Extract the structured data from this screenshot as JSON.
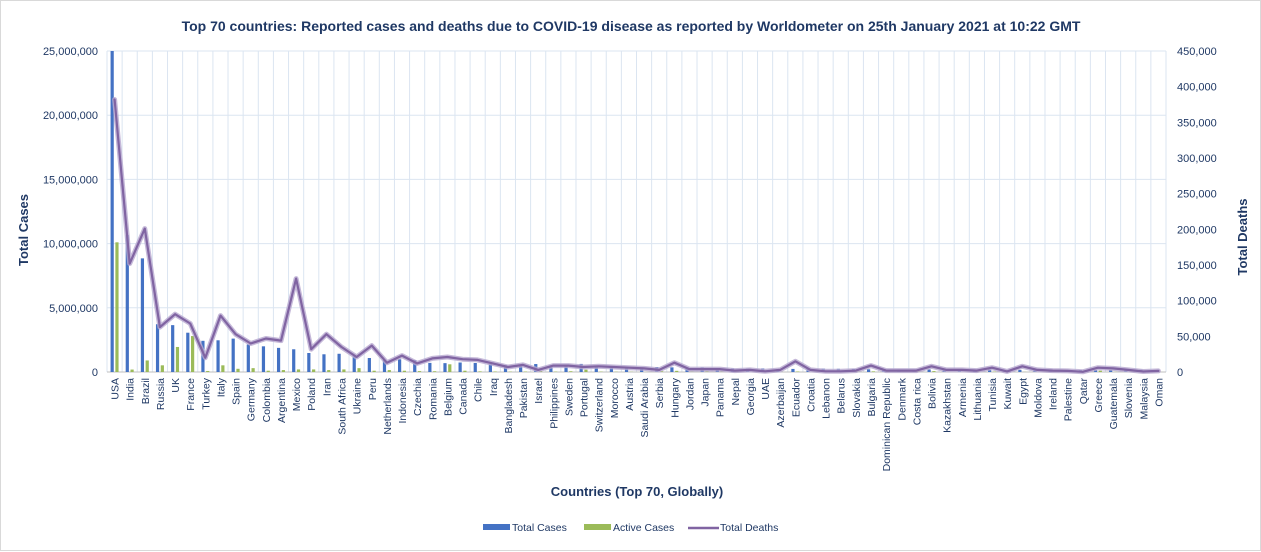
{
  "chart_data": {
    "type": "bar",
    "title": "Top 70 countries: Reported cases and deaths due to COVID-19 disease as reported by Worldometer on 25th January 2021 at 10:22 GMT",
    "xlabel": "Countries (Top 70, Globally)",
    "ylabel": "Total Cases",
    "y2label": "Total Deaths",
    "ylim": [
      0,
      25000000
    ],
    "y2lim": [
      0,
      450000
    ],
    "yticks": [
      "0",
      "5,000,000",
      "10,000,000",
      "15,000,000",
      "20,000,000",
      "25,000,000"
    ],
    "y2ticks": [
      "0",
      "50,000",
      "100,000",
      "150,000",
      "200,000",
      "250,000",
      "300,000",
      "350,000",
      "400,000",
      "450,000"
    ],
    "grid": true,
    "legend_position": "bottom",
    "categories": [
      "USA",
      "India",
      "Brazil",
      "Russia",
      "UK",
      "France",
      "Turkey",
      "Italy",
      "Spain",
      "Germany",
      "Colombia",
      "Argentina",
      "Mexico",
      "Poland",
      "Iran",
      "South Africa",
      "Ukraine",
      "Peru",
      "Netherlands",
      "Indonesia",
      "Czechia",
      "Romania",
      "Belgium",
      "Canada",
      "Chile",
      "Iraq",
      "Bangladesh",
      "Pakistan",
      "Israel",
      "Philippines",
      "Sweden",
      "Portugal",
      "Switzerland",
      "Morocco",
      "Austria",
      "Saudi Arabia",
      "Serbia",
      "Hungary",
      "Jordan",
      "Japan",
      "Panama",
      "Nepal",
      "Georgia",
      "UAE",
      "Azerbaijan",
      "Ecuador",
      "Croatia",
      "Lebanon",
      "Belarus",
      "Slovakia",
      "Bulgaria",
      "Dominican Republic",
      "Denmark",
      "Costa rica",
      "Bolivia",
      "Kazakhstan",
      "Armenia",
      "Lithuania",
      "Tunisia",
      "Kuwait",
      "Egypt",
      "Moldova",
      "Ireland",
      "Palestine",
      "Qatar",
      "Greece",
      "Guatemala",
      "Slovenia",
      "Malaysia",
      "Oman"
    ],
    "series": [
      {
        "name": "Total Cases",
        "color": "#4472c4",
        "axis": "left",
        "type": "bar",
        "values": [
          25600000,
          10670000,
          8850000,
          3720000,
          3650000,
          3060000,
          2430000,
          2470000,
          2600000,
          2140000,
          2000000,
          1880000,
          1770000,
          1480000,
          1380000,
          1420000,
          1220000,
          1090000,
          950000,
          990000,
          930000,
          710000,
          690000,
          740000,
          700000,
          610000,
          530000,
          540000,
          620000,
          510000,
          560000,
          630000,
          510000,
          470000,
          400000,
          368000,
          390000,
          360000,
          320000,
          360000,
          310000,
          270000,
          255000,
          280000,
          230000,
          240000,
          230000,
          270000,
          250000,
          240000,
          210000,
          210000,
          200000,
          180000,
          190000,
          200000,
          165000,
          180000,
          190000,
          160000,
          160000,
          155000,
          190000,
          155000,
          150000,
          150000,
          150000,
          160000,
          180000,
          135000
        ]
      },
      {
        "name": "Active Cases",
        "color": "#9bbb59",
        "axis": "left",
        "type": "bar",
        "values": [
          10100000,
          190000,
          900000,
          520000,
          1950000,
          2800000,
          80000,
          520000,
          250000,
          300000,
          100000,
          150000,
          200000,
          200000,
          150000,
          200000,
          300000,
          100000,
          150000,
          100000,
          70000,
          60000,
          600000,
          100000,
          50000,
          40000,
          30000,
          35000,
          70000,
          30000,
          60000,
          180000,
          30000,
          20000,
          15000,
          4000,
          60000,
          90000,
          15000,
          35000,
          40000,
          10000,
          10000,
          35000,
          5000,
          40000,
          10000,
          100000,
          5000,
          50000,
          50000,
          60000,
          15000,
          70000,
          70000,
          20000,
          5000,
          40000,
          30000,
          3000,
          10000,
          5000,
          30000,
          15000,
          10000,
          100000,
          10000,
          20000,
          30000,
          3000
        ]
      },
      {
        "name": "Total Deaths",
        "color": "#8064a2",
        "axis": "right",
        "type": "line",
        "values": [
          382000,
          152000,
          201000,
          63000,
          81000,
          68000,
          20000,
          79000,
          53000,
          40000,
          47000,
          44000,
          131000,
          32000,
          53000,
          35000,
          21000,
          37000,
          13000,
          23000,
          12000,
          19000,
          21000,
          18000,
          17000,
          12000,
          7000,
          10000,
          3000,
          9000,
          9000,
          7000,
          8000,
          7000,
          6000,
          5000,
          3000,
          13000,
          4000,
          4000,
          4000,
          2000,
          3000,
          1000,
          3000,
          15000,
          3000,
          1000,
          1000,
          2000,
          9000,
          2000,
          2000,
          2000,
          8000,
          3000,
          3000,
          2000,
          6000,
          900,
          8000,
          3000,
          2000,
          1500,
          240,
          6000,
          5000,
          3000,
          700,
          1500
        ]
      }
    ]
  }
}
